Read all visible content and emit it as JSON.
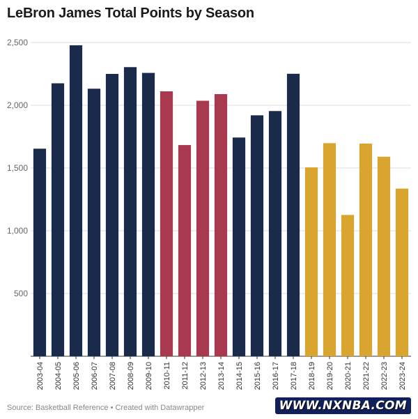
{
  "chart_data": {
    "type": "bar",
    "title": "LeBron James Total Points by Season",
    "xlabel": "",
    "ylabel": "",
    "ylim": [
      0,
      2500
    ],
    "yticks": [
      {
        "value": 500,
        "label": "500"
      },
      {
        "value": 1000,
        "label": "1,000"
      },
      {
        "value": 1500,
        "label": "1,500"
      },
      {
        "value": 2000,
        "label": "2,000"
      },
      {
        "value": 2500,
        "label": "2,500"
      }
    ],
    "grid": true,
    "categories": [
      "2003-04",
      "2004-05",
      "2005-06",
      "2006-07",
      "2007-08",
      "2008-09",
      "2009-10",
      "2010-11",
      "2011-12",
      "2012-13",
      "2013-14",
      "2014-15",
      "2015-16",
      "2016-17",
      "2017-18",
      "2018-19",
      "2019-20",
      "2020-21",
      "2021-22",
      "2022-23",
      "2023-24"
    ],
    "values": [
      1654,
      2175,
      2478,
      2132,
      2250,
      2304,
      2258,
      2111,
      1683,
      2036,
      2089,
      1743,
      1920,
      1954,
      2251,
      1505,
      1698,
      1126,
      1695,
      1590,
      1336
    ],
    "team_colors": [
      "#1a2a4a",
      "#1a2a4a",
      "#1a2a4a",
      "#1a2a4a",
      "#1a2a4a",
      "#1a2a4a",
      "#1a2a4a",
      "#a8394f",
      "#a8394f",
      "#a8394f",
      "#a8394f",
      "#1a2a4a",
      "#1a2a4a",
      "#1a2a4a",
      "#1a2a4a",
      "#d9a52e",
      "#d9a52e",
      "#d9a52e",
      "#d9a52e",
      "#d9a52e",
      "#d9a52e"
    ]
  },
  "footer": {
    "source": "Source: Basketball Reference • Created with Datawrapper",
    "watermark": "WWW.NXNBA.COM"
  },
  "colors": {
    "cavaliers": "#1a2a4a",
    "heat": "#a8394f",
    "lakers": "#d9a52e",
    "grid": "#dddddd",
    "axis_text": "#666666"
  }
}
